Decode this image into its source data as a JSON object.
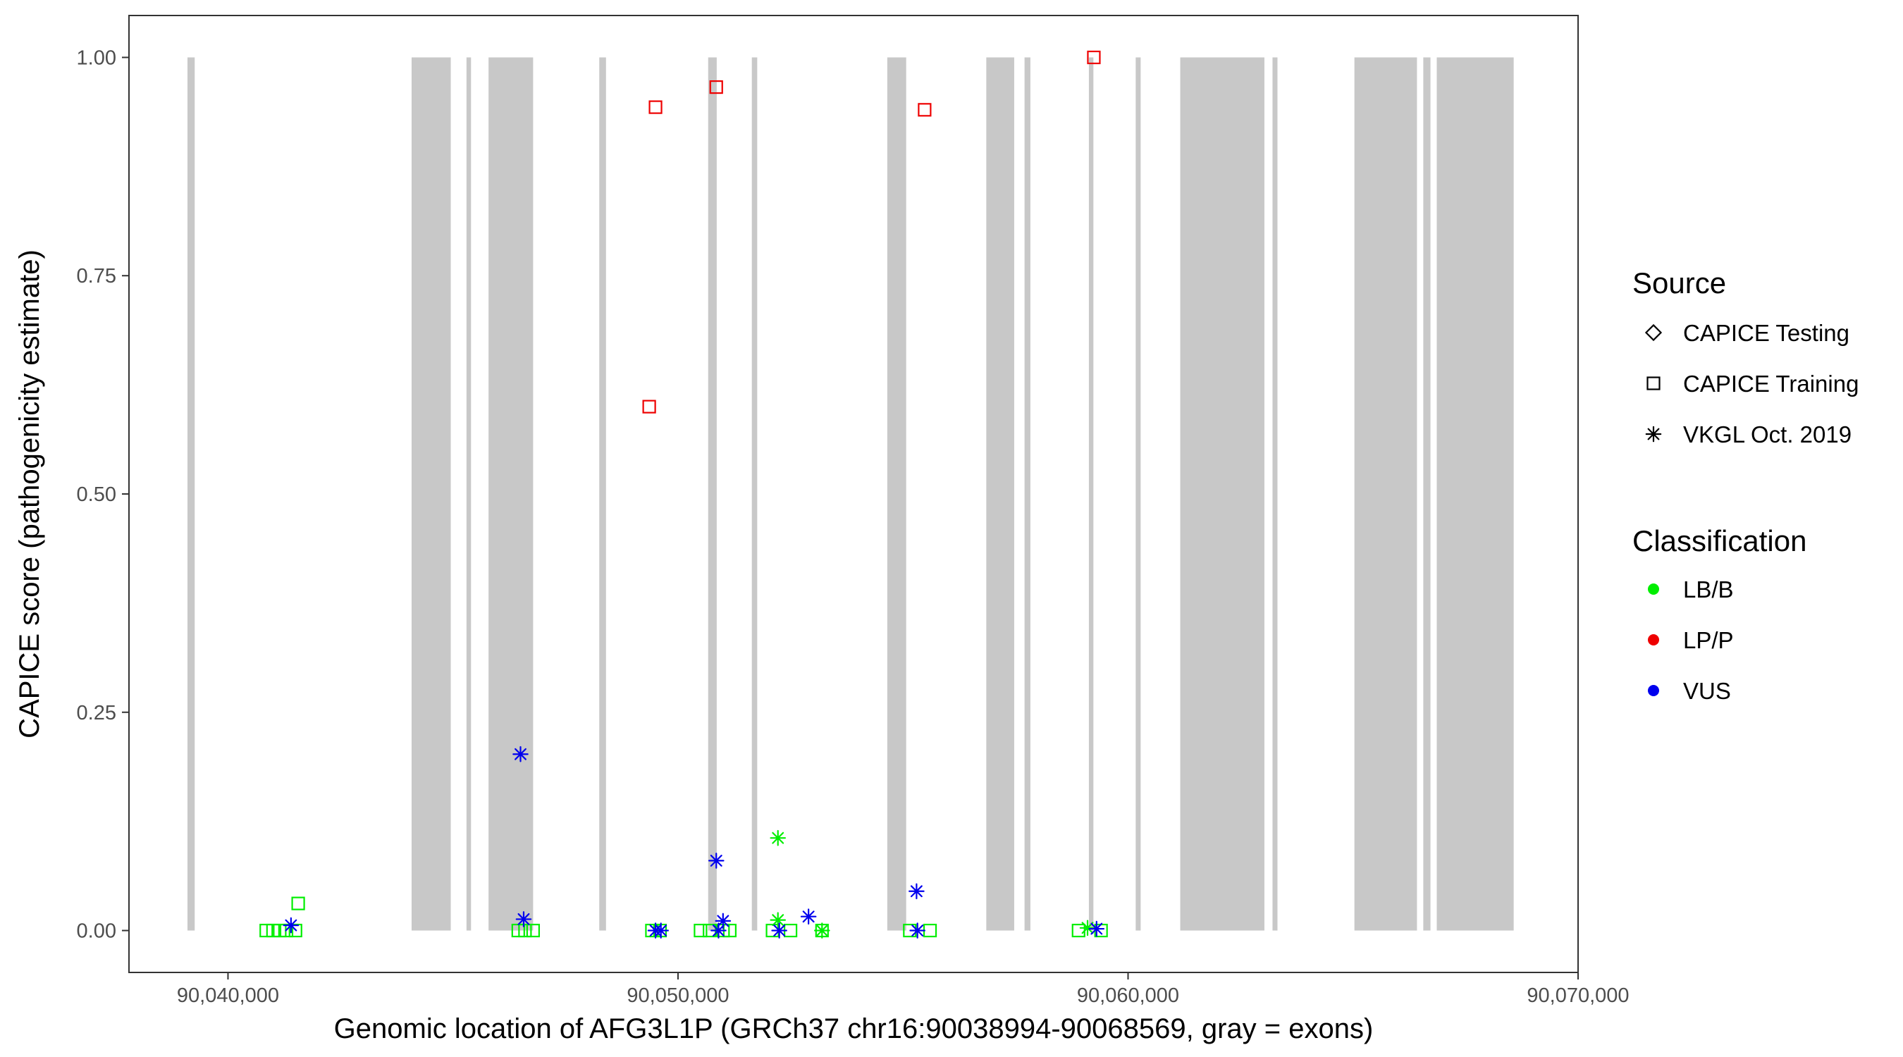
{
  "chart_data": {
    "type": "scatter",
    "title": "",
    "xlabel": "Genomic location of AFG3L1P (GRCh37 chr16:90038994-90068569, gray = exons)",
    "ylabel": "CAPICE score (pathogenicity estimate)",
    "xlim": [
      90037800,
      90070000
    ],
    "ylim": [
      -0.048,
      1.048
    ],
    "x_ticks": [
      {
        "value": 90040000,
        "label": "90,040,000"
      },
      {
        "value": 90050000,
        "label": "90,050,000"
      },
      {
        "value": 90060000,
        "label": "90,060,000"
      },
      {
        "value": 90070000,
        "label": "90,070,000"
      }
    ],
    "y_ticks": [
      {
        "value": 0,
        "label": "0.00"
      },
      {
        "value": 0.25,
        "label": "0.25"
      },
      {
        "value": 0.5,
        "label": "0.50"
      },
      {
        "value": 0.75,
        "label": "0.75"
      },
      {
        "value": 1,
        "label": "1.00"
      }
    ],
    "grid": false,
    "exons": [
      [
        90039100,
        90039260
      ],
      [
        90044080,
        90044950
      ],
      [
        90045300,
        90045400
      ],
      [
        90045790,
        90046780
      ],
      [
        90048250,
        90048400
      ],
      [
        90050670,
        90050860
      ],
      [
        90051640,
        90051760
      ],
      [
        90054650,
        90055070
      ],
      [
        90056850,
        90057470
      ],
      [
        90057700,
        90057830
      ],
      [
        90059130,
        90059230
      ],
      [
        90060170,
        90060280
      ],
      [
        90061160,
        90063030
      ],
      [
        90063210,
        90063320
      ],
      [
        90065030,
        90066420
      ],
      [
        90066560,
        90066720
      ],
      [
        90066860,
        90068569
      ]
    ],
    "exon_color": "#c8c8c8",
    "legend_position": "right",
    "shape_legend": {
      "title": "Source",
      "items": [
        {
          "shape": "diamond",
          "label": "CAPICE Testing"
        },
        {
          "shape": "square",
          "label": "CAPICE Training"
        },
        {
          "shape": "asterisk",
          "label": "VKGL Oct. 2019"
        }
      ]
    },
    "color_legend": {
      "title": "Classification",
      "items": [
        {
          "label": "LB/B",
          "color": "#00ee00"
        },
        {
          "label": "LP/P",
          "color": "#ee0000"
        },
        {
          "label": "VUS",
          "color": "#0000ee"
        }
      ]
    },
    "series": [
      {
        "source": "CAPICE Training",
        "classification": "LP/P",
        "points": [
          {
            "x": 90049500,
            "y": 0.943
          },
          {
            "x": 90050850,
            "y": 0.966
          },
          {
            "x": 90049360,
            "y": 0.6
          },
          {
            "x": 90055480,
            "y": 0.94
          },
          {
            "x": 90059240,
            "y": 1.0
          }
        ]
      },
      {
        "source": "CAPICE Training",
        "classification": "LB/B",
        "points": [
          {
            "x": 90041560,
            "y": 0.031
          },
          {
            "x": 90040850,
            "y": 0.0
          },
          {
            "x": 90041000,
            "y": 0.0
          },
          {
            "x": 90041150,
            "y": 0.0
          },
          {
            "x": 90041300,
            "y": 0.0
          },
          {
            "x": 90041500,
            "y": 0.0
          },
          {
            "x": 90046450,
            "y": 0.0
          },
          {
            "x": 90046600,
            "y": 0.0
          },
          {
            "x": 90046780,
            "y": 0.0
          },
          {
            "x": 90049420,
            "y": 0.0
          },
          {
            "x": 90049600,
            "y": 0.0
          },
          {
            "x": 90050500,
            "y": 0.0
          },
          {
            "x": 90050700,
            "y": 0.0
          },
          {
            "x": 90051000,
            "y": 0.0
          },
          {
            "x": 90051150,
            "y": 0.0
          },
          {
            "x": 90052100,
            "y": 0.0
          },
          {
            "x": 90052500,
            "y": 0.0
          },
          {
            "x": 90053200,
            "y": 0.0
          },
          {
            "x": 90055150,
            "y": 0.0
          },
          {
            "x": 90055600,
            "y": 0.0
          },
          {
            "x": 90058900,
            "y": 0.0
          },
          {
            "x": 90059400,
            "y": 0.0
          }
        ]
      },
      {
        "source": "VKGL Oct. 2019",
        "classification": "LB/B",
        "points": [
          {
            "x": 90052220,
            "y": 0.106
          },
          {
            "x": 90052220,
            "y": 0.012
          },
          {
            "x": 90053200,
            "y": 0.0
          },
          {
            "x": 90059100,
            "y": 0.003
          }
        ]
      },
      {
        "source": "VKGL Oct. 2019",
        "classification": "VUS",
        "points": [
          {
            "x": 90041400,
            "y": 0.006
          },
          {
            "x": 90046500,
            "y": 0.202
          },
          {
            "x": 90046570,
            "y": 0.013
          },
          {
            "x": 90049500,
            "y": 0.0
          },
          {
            "x": 90049620,
            "y": 0.0
          },
          {
            "x": 90050850,
            "y": 0.08
          },
          {
            "x": 90051000,
            "y": 0.011
          },
          {
            "x": 90050900,
            "y": 0.0
          },
          {
            "x": 90052250,
            "y": 0.0
          },
          {
            "x": 90052900,
            "y": 0.016
          },
          {
            "x": 90055300,
            "y": 0.045
          },
          {
            "x": 90055320,
            "y": 0.0
          },
          {
            "x": 90059300,
            "y": 0.002
          }
        ]
      }
    ]
  }
}
